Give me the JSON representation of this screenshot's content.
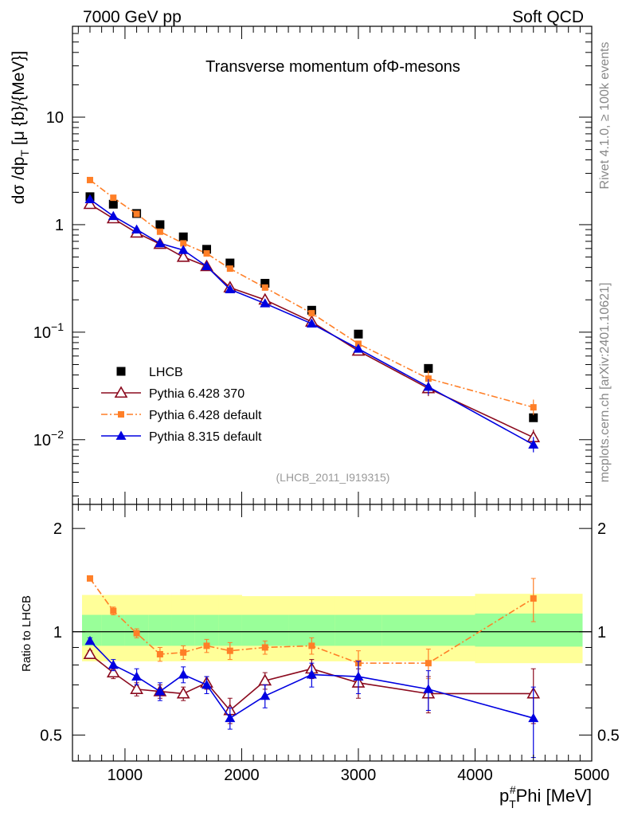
{
  "header": {
    "left": "7000 GeV pp",
    "right": "Soft QCD"
  },
  "side_labels": {
    "rivet": "Rivet 4.1.0, ≥ 100k events",
    "mcplots": "mcplots.cern.ch [arXiv:2401.10621]"
  },
  "chart_data": [
    {
      "id": "main",
      "type": "scatter",
      "title": "Transverse momentum of",
      "title_symbol": "Φ",
      "title_suffix": "-mesons",
      "ylabel": "dσ /dp_T [μ {b}/{MeV}]",
      "ylabel_parts": [
        "dσ /dp",
        "T",
        " [μ {b}/{MeV}]"
      ],
      "yscale": "log",
      "ylim": [
        0.0025,
        70
      ],
      "xlim": [
        550,
        5000
      ],
      "yticks": [
        {
          "value": 10,
          "label": "10"
        },
        {
          "value": 1,
          "label": "1"
        },
        {
          "value": 0.1,
          "label": "10",
          "exp": "−1"
        },
        {
          "value": 0.01,
          "label": "10",
          "exp": "−2"
        }
      ],
      "watermark": "(LHCB_2011_I919315)",
      "legend_position": "bottom-left",
      "x": [
        700,
        900,
        1100,
        1300,
        1500,
        1700,
        1900,
        2200,
        2600,
        3000,
        3600,
        4500
      ],
      "series": [
        {
          "name": "LHCB",
          "color": "#000000",
          "marker": "square",
          "values": [
            1.82,
            1.55,
            1.27,
            1.0,
            0.77,
            0.59,
            0.44,
            0.285,
            0.16,
            0.096,
            0.046,
            0.016
          ]
        },
        {
          "name": "Pythia 6.428 370",
          "color": "#8b0a1e",
          "marker": "open-triangle",
          "values": [
            1.55,
            1.14,
            0.84,
            0.66,
            0.5,
            0.41,
            0.26,
            0.2,
            0.125,
            0.067,
            0.03,
            0.0105
          ]
        },
        {
          "name": "Pythia 6.428 default",
          "color": "#ff7f27",
          "marker": "small-square",
          "values": [
            2.6,
            1.78,
            1.26,
            0.86,
            0.67,
            0.54,
            0.39,
            0.26,
            0.15,
            0.078,
            0.037,
            0.02
          ]
        },
        {
          "name": "Pythia 8.315 default",
          "color": "#0000e0",
          "marker": "filled-triangle",
          "values": [
            1.72,
            1.2,
            0.9,
            0.67,
            0.58,
            0.41,
            0.25,
            0.185,
            0.12,
            0.07,
            0.031,
            0.009
          ]
        }
      ]
    },
    {
      "id": "ratio",
      "type": "scatter",
      "ylabel": "Ratio to LHCB",
      "xlabel": "p_T^#Phi [MeV]",
      "xlabel_parts": [
        "p",
        "T",
        "#",
        "Phi [MeV]"
      ],
      "yscale": "log",
      "ylim": [
        0.42,
        2.35
      ],
      "xlim": [
        550,
        5000
      ],
      "xticks": [
        1000,
        2000,
        3000,
        4000,
        5000
      ],
      "yticks": [
        {
          "value": 2,
          "label": "2"
        },
        {
          "value": 1,
          "label": "1"
        },
        {
          "value": 0.5,
          "label": "0.5"
        }
      ],
      "bands": {
        "x_edges": [
          600,
          800,
          1000,
          1200,
          1400,
          1600,
          1800,
          2000,
          2400,
          2800,
          3200,
          4000,
          5000
        ],
        "yellow_lo": [
          0.82,
          0.82,
          0.82,
          0.82,
          0.82,
          0.82,
          0.82,
          0.82,
          0.82,
          0.82,
          0.82,
          0.81
        ],
        "yellow_hi": [
          1.28,
          1.28,
          1.28,
          1.28,
          1.28,
          1.28,
          1.28,
          1.27,
          1.27,
          1.27,
          1.27,
          1.29
        ],
        "green_lo": [
          0.91,
          0.91,
          0.91,
          0.91,
          0.91,
          0.91,
          0.91,
          0.91,
          0.91,
          0.91,
          0.91,
          0.905
        ],
        "green_hi": [
          1.12,
          1.12,
          1.12,
          1.12,
          1.12,
          1.12,
          1.12,
          1.12,
          1.12,
          1.12,
          1.12,
          1.13
        ]
      },
      "x": [
        700,
        900,
        1100,
        1300,
        1500,
        1700,
        1900,
        2200,
        2600,
        3000,
        3600,
        4500
      ],
      "series": [
        {
          "name": "Pythia 6.428 370",
          "color": "#8b0a1e",
          "marker": "open-triangle",
          "values": [
            0.86,
            0.76,
            0.68,
            0.67,
            0.66,
            0.71,
            0.59,
            0.72,
            0.78,
            0.71,
            0.66,
            0.66
          ],
          "errors": [
            0.02,
            0.03,
            0.03,
            0.03,
            0.03,
            0.03,
            0.05,
            0.04,
            0.05,
            0.07,
            0.08,
            0.12
          ]
        },
        {
          "name": "Pythia 6.428 default",
          "color": "#ff7f27",
          "marker": "small-square",
          "values": [
            1.43,
            1.15,
            0.99,
            0.86,
            0.87,
            0.91,
            0.88,
            0.9,
            0.91,
            0.81,
            0.81,
            1.25
          ],
          "errors": [
            0.02,
            0.03,
            0.03,
            0.04,
            0.04,
            0.04,
            0.05,
            0.04,
            0.05,
            0.07,
            0.08,
            0.18
          ]
        },
        {
          "name": "Pythia 8.315 default",
          "color": "#0000e0",
          "marker": "filled-triangle",
          "values": [
            0.94,
            0.8,
            0.74,
            0.67,
            0.75,
            0.7,
            0.56,
            0.65,
            0.75,
            0.74,
            0.68,
            0.56
          ],
          "errors": [
            0.02,
            0.03,
            0.04,
            0.04,
            0.04,
            0.04,
            0.04,
            0.05,
            0.06,
            0.08,
            0.09,
            0.13
          ]
        }
      ]
    }
  ]
}
